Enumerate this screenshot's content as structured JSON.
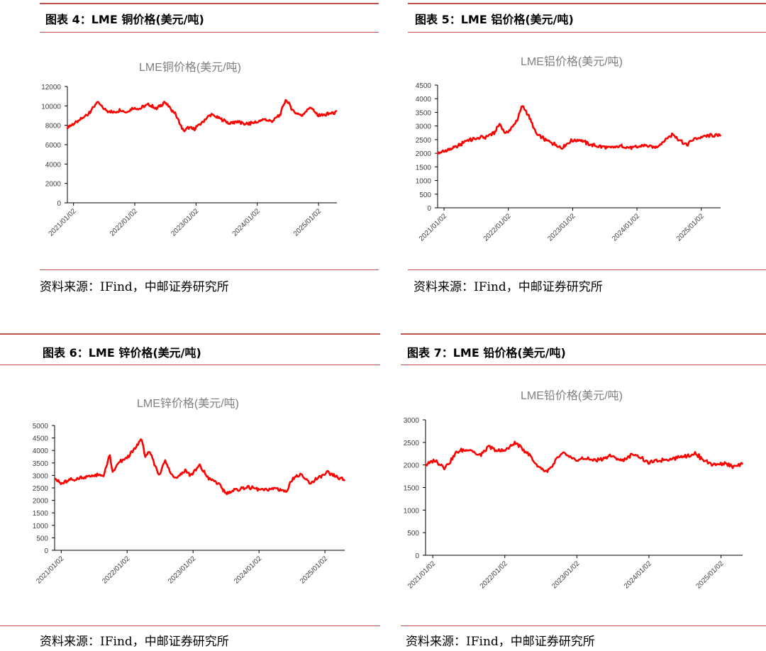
{
  "panels": [
    {
      "fig_title": "图表 4：LME 铜价格(美元/吨)",
      "source": "资料来源：IFind，中邮证券研究所",
      "chart_data": {
        "type": "line",
        "title": "LME铜价格(美元/吨)",
        "xlabel": "",
        "ylabel": "",
        "ylim": [
          0,
          12000
        ],
        "yticks": [
          0,
          2000,
          4000,
          6000,
          8000,
          10000,
          12000
        ],
        "xticks": [
          "2021/01/02",
          "2022/01/02",
          "2023/01/02",
          "2024/01/02",
          "2025/01/02"
        ],
        "color": "#ff0000",
        "series": [
          {
            "x": [
              0,
              0.03,
              0.07,
              0.09,
              0.11,
              0.14,
              0.17,
              0.2,
              0.22,
              0.24,
              0.27,
              0.3,
              0.33,
              0.36,
              0.4,
              0.43,
              0.45,
              0.47,
              0.5,
              0.53,
              0.56,
              0.6,
              0.63,
              0.66,
              0.7,
              0.73,
              0.76,
              0.79,
              0.81,
              0.84,
              0.87,
              0.9,
              0.93,
              0.96,
              1.0
            ],
            "values": [
              7800,
              8200,
              9000,
              9600,
              10400,
              9600,
              9300,
              9600,
              9300,
              9800,
              9700,
              10200,
              9700,
              10400,
              9200,
              7400,
              7800,
              7600,
              8300,
              9100,
              8800,
              8200,
              8400,
              8100,
              8300,
              8600,
              8400,
              9100,
              10700,
              9400,
              9000,
              9900,
              9000,
              9100,
              9400
            ]
          }
        ]
      }
    },
    {
      "fig_title": "图表 5：LME 铝价格(美元/吨)",
      "source": "资料来源：IFind，中邮证券研究所",
      "chart_data": {
        "type": "line",
        "title": "LME铝价格(美元/吨)",
        "xlabel": "",
        "ylabel": "",
        "ylim": [
          0,
          4500
        ],
        "yticks": [
          0,
          500,
          1000,
          1500,
          2000,
          2500,
          3000,
          3500,
          4000,
          4500
        ],
        "xticks": [
          "2021/01/02",
          "2022/01/02",
          "2023/01/02",
          "2024/01/02",
          "2025/01/02"
        ],
        "color": "#ff0000",
        "series": [
          {
            "x": [
              0,
              0.03,
              0.07,
              0.1,
              0.14,
              0.17,
              0.2,
              0.22,
              0.24,
              0.26,
              0.28,
              0.3,
              0.32,
              0.35,
              0.38,
              0.41,
              0.44,
              0.47,
              0.5,
              0.53,
              0.57,
              0.61,
              0.65,
              0.69,
              0.73,
              0.77,
              0.8,
              0.83,
              0.86,
              0.88,
              0.91,
              0.94,
              0.97,
              1.0
            ],
            "values": [
              1980,
              2100,
              2250,
              2450,
              2550,
              2600,
              2750,
              3100,
              2700,
              2900,
              3200,
              3750,
              3400,
              2700,
              2500,
              2350,
              2200,
              2450,
              2500,
              2350,
              2250,
              2200,
              2250,
              2200,
              2300,
              2200,
              2450,
              2700,
              2450,
              2300,
              2550,
              2600,
              2650,
              2650
            ]
          }
        ]
      }
    },
    {
      "fig_title": "图表 6：LME 锌价格(美元/吨)",
      "source": "资料来源：IFind，中邮证券研究所",
      "chart_data": {
        "type": "line",
        "title": "LME锌价格(美元/吨)",
        "xlabel": "",
        "ylabel": "",
        "ylim": [
          0,
          5000
        ],
        "yticks": [
          0,
          500,
          1000,
          1500,
          2000,
          2500,
          3000,
          3500,
          4000,
          4500,
          5000
        ],
        "xticks": [
          "2021/01/02",
          "2022/01/02",
          "2023/01/02",
          "2024/01/02",
          "2025/01/02"
        ],
        "color": "#ff0000",
        "series": [
          {
            "x": [
              0,
              0.02,
              0.05,
              0.09,
              0.13,
              0.17,
              0.19,
              0.2,
              0.22,
              0.25,
              0.28,
              0.3,
              0.31,
              0.33,
              0.36,
              0.38,
              0.4,
              0.42,
              0.45,
              0.47,
              0.5,
              0.53,
              0.56,
              0.59,
              0.62,
              0.65,
              0.68,
              0.72,
              0.76,
              0.8,
              0.82,
              0.85,
              0.88,
              0.91,
              0.94,
              0.97,
              1.0
            ],
            "values": [
              2950,
              2650,
              2800,
              2900,
              3000,
              3000,
              3800,
              3100,
              3500,
              3700,
              4100,
              4500,
              3800,
              3900,
              3000,
              3600,
              3100,
              2900,
              3200,
              3000,
              3400,
              2900,
              2700,
              2300,
              2400,
              2500,
              2500,
              2400,
              2500,
              2350,
              2900,
              3000,
              2700,
              2900,
              3100,
              2950,
              2800
            ]
          }
        ]
      }
    },
    {
      "fig_title": "图表 7：LME 铅价格(美元/吨)",
      "source": "资料来源：IFind，中邮证券研究所",
      "chart_data": {
        "type": "line",
        "title": "LME铅价格(美元/吨)",
        "xlabel": "",
        "ylabel": "",
        "ylim": [
          0,
          3000
        ],
        "yticks": [
          0,
          500,
          1000,
          1500,
          2000,
          2500,
          3000
        ],
        "xticks": [
          "2021/01/02",
          "2022/01/02",
          "2023/01/02",
          "2024/01/02",
          "2025/01/02"
        ],
        "color": "#ff0000",
        "series": [
          {
            "x": [
              0,
              0.03,
              0.06,
              0.08,
              0.1,
              0.14,
              0.17,
              0.2,
              0.23,
              0.26,
              0.28,
              0.3,
              0.33,
              0.35,
              0.38,
              0.4,
              0.42,
              0.44,
              0.47,
              0.5,
              0.54,
              0.58,
              0.62,
              0.66,
              0.7,
              0.74,
              0.78,
              0.82,
              0.85,
              0.88,
              0.91,
              0.94,
              0.97,
              1.0
            ],
            "values": [
              2000,
              2100,
              1950,
              2100,
              2300,
              2350,
              2200,
              2400,
              2300,
              2350,
              2500,
              2400,
              2200,
              2000,
              1850,
              1950,
              2200,
              2250,
              2100,
              2150,
              2100,
              2200,
              2100,
              2250,
              2050,
              2100,
              2150,
              2200,
              2250,
              2100,
              2000,
              2050,
              1950,
              2000
            ]
          }
        ]
      }
    }
  ]
}
